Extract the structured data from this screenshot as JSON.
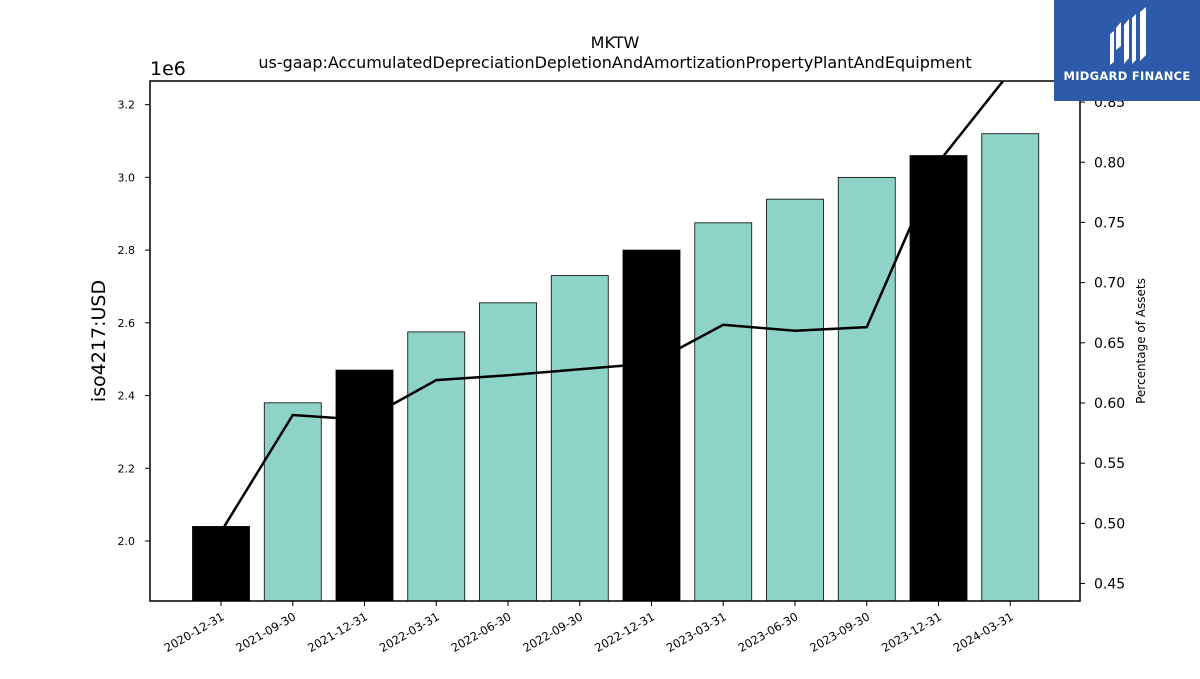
{
  "chart_data": {
    "type": "bar",
    "title": "MKTW",
    "subtitle": "us-gaap:AccumulatedDepreciationDepletionAndAmortizationPropertyPlantAndEquipment",
    "ylabel": "iso4217:USD",
    "y_offset_label": "1e6",
    "y2label": "Percentage of Assets",
    "ylim": [
      1.835,
      3.265
    ],
    "y2lim": [
      0.4355,
      0.8675
    ],
    "yticks": [
      "2.0",
      "2.2",
      "2.4",
      "2.6",
      "2.8",
      "3.0",
      "3.2"
    ],
    "y2ticks": [
      "0.45",
      "0.50",
      "0.55",
      "0.60",
      "0.65",
      "0.70",
      "0.75",
      "0.80",
      "0.85"
    ],
    "categories": [
      "2020-12-31",
      "2021-09-30",
      "2021-12-31",
      "2022-03-31",
      "2022-06-30",
      "2022-09-30",
      "2022-12-31",
      "2023-03-31",
      "2023-06-30",
      "2023-09-30",
      "2023-12-31",
      "2024-03-31"
    ],
    "series": [
      {
        "type": "bar",
        "values": [
          2.04,
          2.38,
          2.47,
          2.575,
          2.655,
          2.73,
          2.8,
          2.875,
          2.94,
          3.0,
          3.06,
          3.12
        ],
        "colors": [
          "#000000",
          "#8dd3c7",
          "#000000",
          "#8dd3c7",
          "#8dd3c7",
          "#8dd3c7",
          "#000000",
          "#8dd3c7",
          "#8dd3c7",
          "#8dd3c7",
          "#000000",
          "#8dd3c7"
        ]
      },
      {
        "type": "line",
        "axis": "right",
        "color": "#000000",
        "values": [
          0.493,
          0.59,
          0.586,
          0.619,
          0.623,
          0.628,
          0.633,
          0.665,
          0.66,
          0.663,
          0.8,
          0.875
        ]
      }
    ],
    "grid": false
  },
  "watermark": {
    "text": "MIDGARD FINANCE",
    "background": "#2d5bab"
  }
}
